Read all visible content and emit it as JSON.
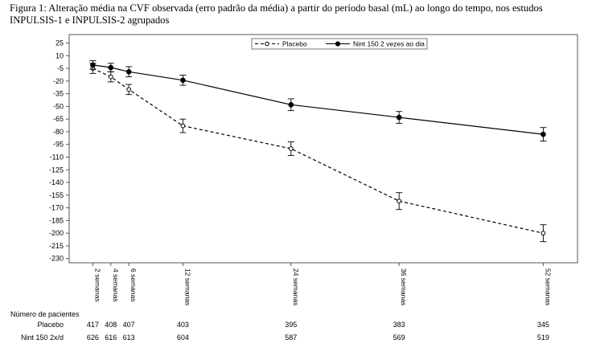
{
  "caption": "Figura 1: Alteração média na CVF observada (erro padrão da média) a partir do período basal (mL) ao longo do tempo, nos estudos INPULSIS-1 e INPULSIS-2 agrupados",
  "chart_data": {
    "type": "line",
    "ylabel": "Alteração média na CVF observada (erro padrão da média) a partir do período basal (mL)",
    "ylim": [
      -235,
      35
    ],
    "yticks": [
      25,
      10,
      -5,
      -20,
      -35,
      -50,
      -65,
      -80,
      -95,
      -110,
      -125,
      -140,
      -155,
      -170,
      -185,
      -200,
      -215,
      -230
    ],
    "xlim": [
      0,
      55
    ],
    "x": [
      2,
      4,
      6,
      12,
      24,
      36,
      52
    ],
    "categories": [
      "2 semanas",
      "4 semanas",
      "6 semanas",
      "12 semanas",
      "24 semanas",
      "36 semanas",
      "52 semanas"
    ],
    "legend_position": "top",
    "series": [
      {
        "name": "Placebo",
        "style": "dashed",
        "marker": "open-circle",
        "values": [
          -5,
          -15,
          -30,
          -73,
          -100,
          -162,
          -200
        ],
        "error": [
          6,
          6,
          6,
          8,
          8,
          10,
          10
        ]
      },
      {
        "name": "Nint 150 2 vezes ao dia",
        "style": "solid",
        "marker": "filled-circle",
        "values": [
          -1,
          -4,
          -9,
          -19,
          -48,
          -63,
          -83
        ],
        "error": [
          5,
          5,
          6,
          6,
          7,
          7,
          8
        ]
      }
    ]
  },
  "patients_table": {
    "header": "Número de pacientes",
    "rows": [
      {
        "label": "Placebo",
        "values": [
          "417",
          "408",
          "407",
          "403",
          "395",
          "383",
          "345"
        ]
      },
      {
        "label": "Nint 150 2x/d",
        "values": [
          "626",
          "616",
          "613",
          "604",
          "587",
          "569",
          "519"
        ]
      }
    ]
  },
  "colors": {
    "line": "#000000",
    "frame": "#555555",
    "background": "#ffffff"
  }
}
